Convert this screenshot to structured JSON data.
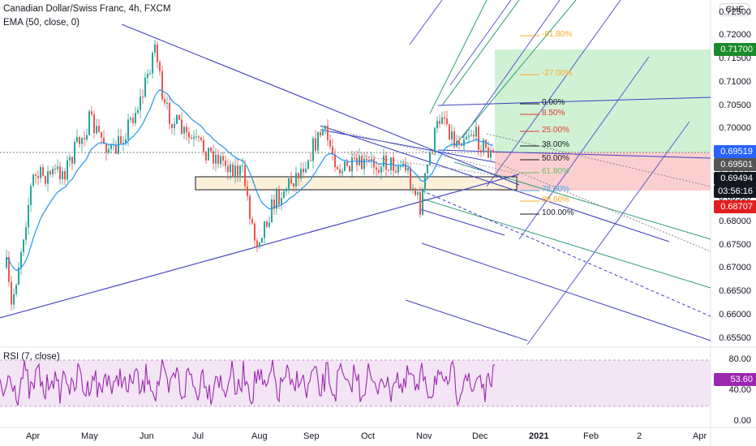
{
  "legend": {
    "symbol_line": "Canadian Dollar/Swiss Franc, 4h, FXCM",
    "ema_line": "EMA (50, close, 0)"
  },
  "currency_chip": "CHF",
  "price_axis": {
    "labels": [
      "0.72500",
      "0.72000",
      "0.71500",
      "0.71000",
      "0.70500",
      "0.70000",
      "0.69500",
      "0.69000",
      "0.68500",
      "0.68000",
      "0.67500",
      "0.67000",
      "0.66500",
      "0.66000",
      "0.65500"
    ]
  },
  "price_badges": [
    {
      "text": "0.71700",
      "color": "#1b8a2a"
    },
    {
      "text": "0.69519",
      "color": "#2962ff"
    },
    {
      "text": "0.69501",
      "color": "#555555"
    },
    {
      "text": "0.69494",
      "color": "#131722"
    },
    {
      "text": "03:56:16",
      "color": "#131722"
    },
    {
      "text": "0.68707",
      "color": "#e21d1d"
    }
  ],
  "fib_levels": [
    {
      "label": "-61.80%",
      "color": "#ffa726"
    },
    {
      "label": "-27.00%",
      "color": "#ffa726"
    },
    {
      "label": "0.00%",
      "color": "#131722"
    },
    {
      "label": "8.50%",
      "color": "#e53935"
    },
    {
      "label": "25.00%",
      "color": "#e53935"
    },
    {
      "label": "38.00%",
      "color": "#131722"
    },
    {
      "label": "50.00%",
      "color": "#131722"
    },
    {
      "label": "61.80%",
      "color": "#66bb6a"
    },
    {
      "label": "78.60%",
      "color": "#42a5f5"
    },
    {
      "label": "88.60%",
      "color": "#ffa726"
    },
    {
      "label": "100.00%",
      "color": "#131722"
    }
  ],
  "rsi": {
    "title": "RSI (7, close)",
    "axis_labels": [
      "80.00",
      "40.00",
      "0.00"
    ],
    "current_value": "53.60",
    "color": "#9c27b0"
  },
  "time_axis": [
    "Apr",
    "May",
    "Jun",
    "Jul",
    "Aug",
    "Sep",
    "Oct",
    "Nov",
    "Dec",
    "2021",
    "Feb",
    "2",
    "Apr"
  ],
  "colors": {
    "candle_up": "#26a69a",
    "candle_down": "#ef5350",
    "ema": "#2196f3",
    "trendline": "#3f3fc4",
    "pitchfork_green": "#2e9e7a",
    "target_zone": "#c8efcb",
    "stop_zone": "#fbcaca",
    "support_box": "#fdf1da"
  }
}
